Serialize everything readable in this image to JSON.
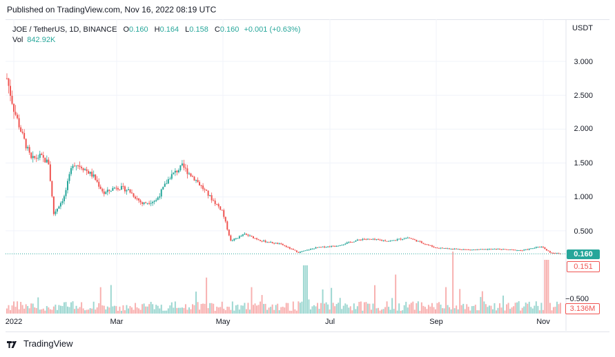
{
  "published": "Published on TradingView.com, Nov 16, 2022 08:19 UTC",
  "legend": {
    "symbol": "JOE / TetherUS, 1D, BINANCE",
    "o_label": "O",
    "o_val": "0.160",
    "h_label": "H",
    "h_val": "0.164",
    "l_label": "L",
    "l_val": "0.158",
    "c_label": "C",
    "c_val": "0.160",
    "change": "+0.001 (+0.63%)",
    "vol_label": "Vol",
    "vol_val": "842.92K"
  },
  "currency": "USDT",
  "badges": {
    "last": "0.160",
    "low": "0.151",
    "volume": "3.136M",
    "negative": "−0.500"
  },
  "footer": {
    "brand": "TradingView"
  },
  "colors": {
    "up": "#26a69a",
    "down": "#ef5350",
    "grid": "#f0f3fa"
  },
  "chart_data": {
    "type": "candlestick",
    "x_labels": [
      "2022",
      "Mar",
      "May",
      "Jul",
      "Sep",
      "Nov"
    ],
    "y_ticks": [
      "3.000",
      "2.500",
      "2.000",
      "1.500",
      "1.000",
      "0.500"
    ],
    "y_tick_values": [
      3.0,
      2.5,
      2.0,
      1.5,
      1.0,
      0.5
    ],
    "last_price": 0.16,
    "period_low": 0.151,
    "close_series": [
      {
        "date": "2022-01-01",
        "close": 2.75
      },
      {
        "date": "2022-01-05",
        "close": 2.3
      },
      {
        "date": "2022-01-10",
        "close": 1.9
      },
      {
        "date": "2022-01-15",
        "close": 1.55
      },
      {
        "date": "2022-01-20",
        "close": 1.6
      },
      {
        "date": "2022-01-25",
        "close": 1.5
      },
      {
        "date": "2022-01-28",
        "close": 0.75
      },
      {
        "date": "2022-02-03",
        "close": 1.0
      },
      {
        "date": "2022-02-08",
        "close": 1.5
      },
      {
        "date": "2022-02-13",
        "close": 1.45
      },
      {
        "date": "2022-02-20",
        "close": 1.3
      },
      {
        "date": "2022-02-26",
        "close": 1.05
      },
      {
        "date": "2022-03-05",
        "close": 1.15
      },
      {
        "date": "2022-03-12",
        "close": 1.1
      },
      {
        "date": "2022-03-20",
        "close": 0.9
      },
      {
        "date": "2022-03-28",
        "close": 0.95
      },
      {
        "date": "2022-04-05",
        "close": 1.3
      },
      {
        "date": "2022-04-12",
        "close": 1.45
      },
      {
        "date": "2022-04-20",
        "close": 1.25
      },
      {
        "date": "2022-04-28",
        "close": 1.0
      },
      {
        "date": "2022-05-05",
        "close": 0.8
      },
      {
        "date": "2022-05-10",
        "close": 0.35
      },
      {
        "date": "2022-05-18",
        "close": 0.45
      },
      {
        "date": "2022-05-28",
        "close": 0.35
      },
      {
        "date": "2022-06-08",
        "close": 0.3
      },
      {
        "date": "2022-06-18",
        "close": 0.18
      },
      {
        "date": "2022-06-28",
        "close": 0.25
      },
      {
        "date": "2022-07-10",
        "close": 0.28
      },
      {
        "date": "2022-07-25",
        "close": 0.38
      },
      {
        "date": "2022-08-10",
        "close": 0.35
      },
      {
        "date": "2022-08-20",
        "close": 0.4
      },
      {
        "date": "2022-09-05",
        "close": 0.25
      },
      {
        "date": "2022-09-25",
        "close": 0.22
      },
      {
        "date": "2022-10-10",
        "close": 0.23
      },
      {
        "date": "2022-10-25",
        "close": 0.21
      },
      {
        "date": "2022-11-05",
        "close": 0.27
      },
      {
        "date": "2022-11-10",
        "close": 0.18
      },
      {
        "date": "2022-11-16",
        "close": 0.16
      }
    ]
  }
}
